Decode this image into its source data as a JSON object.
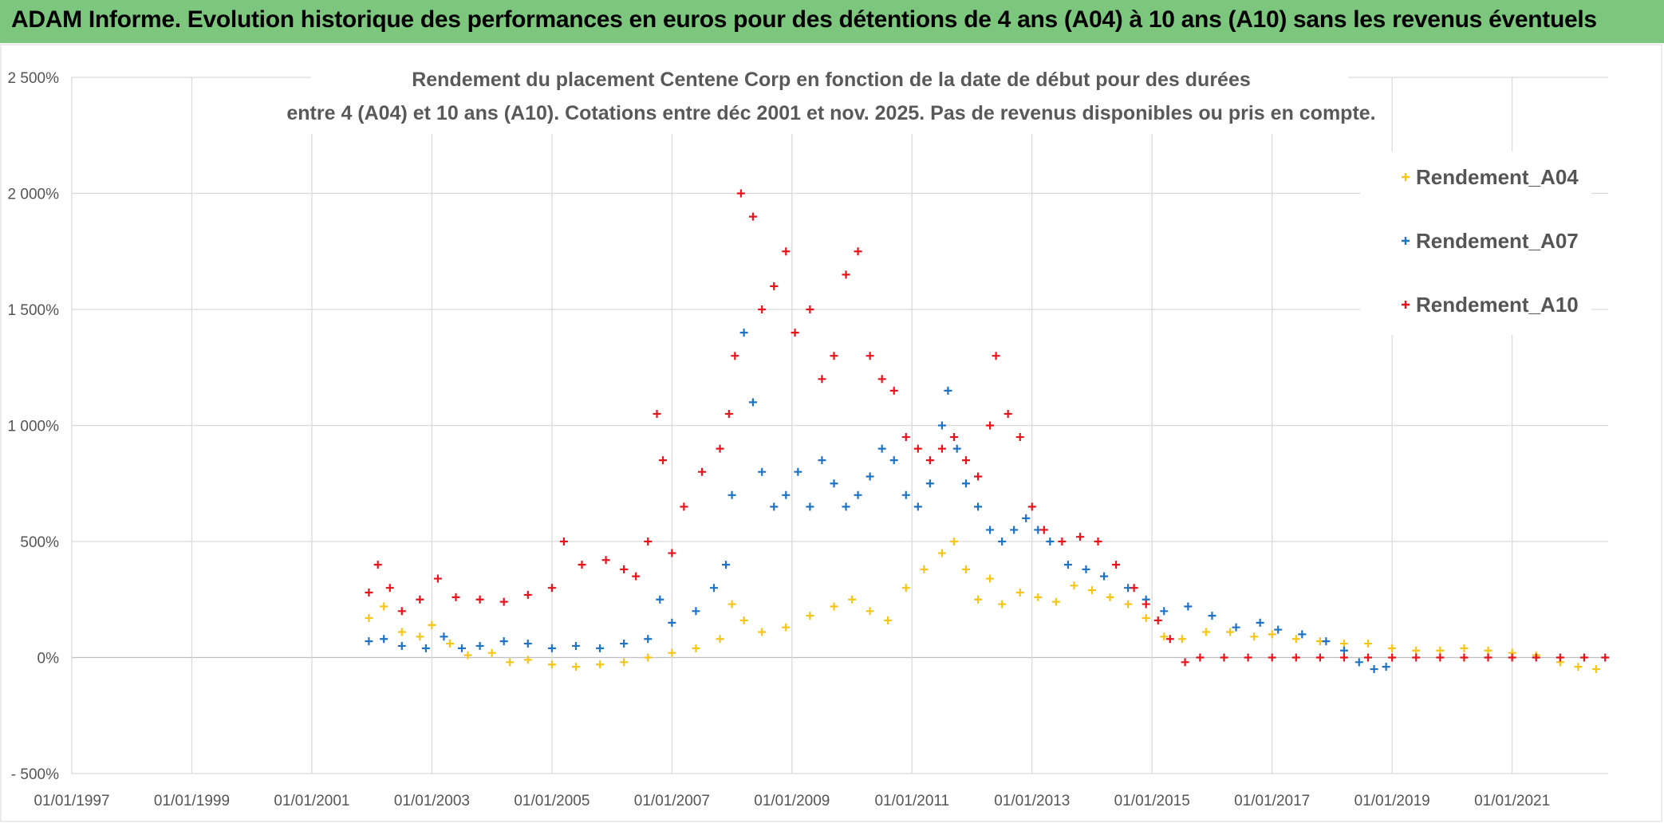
{
  "banner": {
    "title": "ADAM Informe. Evolution historique des performances en euros pour des détentions de 4 ans (A04) à 10 ans (A10) sans les revenus éventuels",
    "color": "#7cc67e"
  },
  "chart_data": {
    "type": "scatter",
    "title_line1": "Rendement du placement Centene Corp en fonction de la date de début pour des durées",
    "title_line2": "entre 4 (A04) et 10 ans (A10). Cotations entre déc 2001 et nov. 2025. Pas de revenus disponibles ou pris en compte.",
    "xlabel": "",
    "ylabel": "",
    "x_range": [
      1997.0,
      2022.6
    ],
    "ylim": [
      -500,
      2500
    ],
    "x_ticks": [
      {
        "value": 1997,
        "label": "01/01/1997"
      },
      {
        "value": 1999,
        "label": "01/01/1999"
      },
      {
        "value": 2001,
        "label": "01/01/2001"
      },
      {
        "value": 2003,
        "label": "01/01/2003"
      },
      {
        "value": 2005,
        "label": "01/01/2005"
      },
      {
        "value": 2007,
        "label": "01/01/2007"
      },
      {
        "value": 2009,
        "label": "01/01/2009"
      },
      {
        "value": 2011,
        "label": "01/01/2011"
      },
      {
        "value": 2013,
        "label": "01/01/2013"
      },
      {
        "value": 2015,
        "label": "01/01/2015"
      },
      {
        "value": 2017,
        "label": "01/01/2017"
      },
      {
        "value": 2019,
        "label": "01/01/2019"
      },
      {
        "value": 2021,
        "label": "01/01/2021"
      }
    ],
    "y_ticks": [
      {
        "value": -500,
        "label": "- 500%"
      },
      {
        "value": 0,
        "label": "0%"
      },
      {
        "value": 500,
        "label": "500%"
      },
      {
        "value": 1000,
        "label": "1 000%"
      },
      {
        "value": 1500,
        "label": "1 500%"
      },
      {
        "value": 2000,
        "label": "2 000%"
      },
      {
        "value": 2500,
        "label": "2 500%"
      }
    ],
    "grid": true,
    "legend_position": "top-right",
    "series": [
      {
        "name": "Rendement_A04",
        "color": "#f5c518",
        "points": [
          [
            2001.95,
            170
          ],
          [
            2002.2,
            220
          ],
          [
            2002.5,
            110
          ],
          [
            2002.8,
            90
          ],
          [
            2003.0,
            140
          ],
          [
            2003.3,
            60
          ],
          [
            2003.6,
            10
          ],
          [
            2004.0,
            20
          ],
          [
            2004.3,
            -20
          ],
          [
            2004.6,
            -10
          ],
          [
            2005.0,
            -30
          ],
          [
            2005.4,
            -40
          ],
          [
            2005.8,
            -30
          ],
          [
            2006.2,
            -20
          ],
          [
            2006.6,
            0
          ],
          [
            2007.0,
            20
          ],
          [
            2007.4,
            40
          ],
          [
            2007.8,
            80
          ],
          [
            2008.0,
            230
          ],
          [
            2008.2,
            160
          ],
          [
            2008.5,
            110
          ],
          [
            2008.9,
            130
          ],
          [
            2009.3,
            180
          ],
          [
            2009.7,
            220
          ],
          [
            2010.0,
            250
          ],
          [
            2010.3,
            200
          ],
          [
            2010.6,
            160
          ],
          [
            2010.9,
            300
          ],
          [
            2011.2,
            380
          ],
          [
            2011.5,
            450
          ],
          [
            2011.7,
            500
          ],
          [
            2011.9,
            380
          ],
          [
            2012.1,
            250
          ],
          [
            2012.3,
            340
          ],
          [
            2012.5,
            230
          ],
          [
            2012.8,
            280
          ],
          [
            2013.1,
            260
          ],
          [
            2013.4,
            240
          ],
          [
            2013.7,
            310
          ],
          [
            2014.0,
            290
          ],
          [
            2014.3,
            260
          ],
          [
            2014.6,
            230
          ],
          [
            2014.9,
            170
          ],
          [
            2015.2,
            90
          ],
          [
            2015.5,
            80
          ],
          [
            2015.9,
            110
          ],
          [
            2016.3,
            110
          ],
          [
            2016.7,
            90
          ],
          [
            2017.0,
            100
          ],
          [
            2017.4,
            80
          ],
          [
            2017.8,
            70
          ],
          [
            2018.2,
            60
          ],
          [
            2018.6,
            60
          ],
          [
            2019.0,
            40
          ],
          [
            2019.4,
            30
          ],
          [
            2019.8,
            30
          ],
          [
            2020.2,
            40
          ],
          [
            2020.6,
            30
          ],
          [
            2021.0,
            20
          ],
          [
            2021.4,
            10
          ],
          [
            2021.8,
            -20
          ],
          [
            2022.1,
            -40
          ],
          [
            2022.4,
            -50
          ]
        ]
      },
      {
        "name": "Rendement_A07",
        "color": "#1f73c5",
        "points": [
          [
            2001.95,
            70
          ],
          [
            2002.2,
            80
          ],
          [
            2002.5,
            50
          ],
          [
            2002.9,
            40
          ],
          [
            2003.2,
            90
          ],
          [
            2003.5,
            40
          ],
          [
            2003.8,
            50
          ],
          [
            2004.2,
            70
          ],
          [
            2004.6,
            60
          ],
          [
            2005.0,
            40
          ],
          [
            2005.4,
            50
          ],
          [
            2005.8,
            40
          ],
          [
            2006.2,
            60
          ],
          [
            2006.6,
            80
          ],
          [
            2006.8,
            250
          ],
          [
            2007.0,
            150
          ],
          [
            2007.4,
            200
          ],
          [
            2007.7,
            300
          ],
          [
            2007.9,
            400
          ],
          [
            2008.0,
            700
          ],
          [
            2008.2,
            1400
          ],
          [
            2008.35,
            1100
          ],
          [
            2008.5,
            800
          ],
          [
            2008.7,
            650
          ],
          [
            2008.9,
            700
          ],
          [
            2009.1,
            800
          ],
          [
            2009.3,
            650
          ],
          [
            2009.5,
            850
          ],
          [
            2009.7,
            750
          ],
          [
            2009.9,
            650
          ],
          [
            2010.1,
            700
          ],
          [
            2010.3,
            780
          ],
          [
            2010.5,
            900
          ],
          [
            2010.7,
            850
          ],
          [
            2010.9,
            700
          ],
          [
            2011.1,
            650
          ],
          [
            2011.3,
            750
          ],
          [
            2011.5,
            1000
          ],
          [
            2011.6,
            1150
          ],
          [
            2011.75,
            900
          ],
          [
            2011.9,
            750
          ],
          [
            2012.1,
            650
          ],
          [
            2012.3,
            550
          ],
          [
            2012.5,
            500
          ],
          [
            2012.7,
            550
          ],
          [
            2012.9,
            600
          ],
          [
            2013.1,
            550
          ],
          [
            2013.3,
            500
          ],
          [
            2013.6,
            400
          ],
          [
            2013.9,
            380
          ],
          [
            2014.2,
            350
          ],
          [
            2014.6,
            300
          ],
          [
            2014.9,
            250
          ],
          [
            2015.2,
            200
          ],
          [
            2015.6,
            220
          ],
          [
            2016.0,
            180
          ],
          [
            2016.4,
            130
          ],
          [
            2016.8,
            150
          ],
          [
            2017.1,
            120
          ],
          [
            2017.5,
            100
          ],
          [
            2017.9,
            70
          ],
          [
            2018.2,
            30
          ],
          [
            2018.45,
            -20
          ],
          [
            2018.7,
            -50
          ],
          [
            2018.9,
            -40
          ]
        ]
      },
      {
        "name": "Rendement_A10",
        "color": "#e8131b",
        "points": [
          [
            2001.95,
            280
          ],
          [
            2002.1,
            400
          ],
          [
            2002.3,
            300
          ],
          [
            2002.5,
            200
          ],
          [
            2002.8,
            250
          ],
          [
            2003.1,
            340
          ],
          [
            2003.4,
            260
          ],
          [
            2003.8,
            250
          ],
          [
            2004.2,
            240
          ],
          [
            2004.6,
            270
          ],
          [
            2005.0,
            300
          ],
          [
            2005.2,
            500
          ],
          [
            2005.5,
            400
          ],
          [
            2005.9,
            420
          ],
          [
            2006.2,
            380
          ],
          [
            2006.4,
            350
          ],
          [
            2006.6,
            500
          ],
          [
            2006.75,
            1050
          ],
          [
            2006.85,
            850
          ],
          [
            2007.0,
            450
          ],
          [
            2007.2,
            650
          ],
          [
            2007.5,
            800
          ],
          [
            2007.8,
            900
          ],
          [
            2007.95,
            1050
          ],
          [
            2008.05,
            1300
          ],
          [
            2008.15,
            2000
          ],
          [
            2008.35,
            1900
          ],
          [
            2008.5,
            1500
          ],
          [
            2008.7,
            1600
          ],
          [
            2008.9,
            1750
          ],
          [
            2009.05,
            1400
          ],
          [
            2009.3,
            1500
          ],
          [
            2009.5,
            1200
          ],
          [
            2009.7,
            1300
          ],
          [
            2009.9,
            1650
          ],
          [
            2010.1,
            1750
          ],
          [
            2010.3,
            1300
          ],
          [
            2010.5,
            1200
          ],
          [
            2010.7,
            1150
          ],
          [
            2010.9,
            950
          ],
          [
            2011.1,
            900
          ],
          [
            2011.3,
            850
          ],
          [
            2011.5,
            900
          ],
          [
            2011.7,
            950
          ],
          [
            2011.9,
            850
          ],
          [
            2012.1,
            780
          ],
          [
            2012.3,
            1000
          ],
          [
            2012.4,
            1300
          ],
          [
            2012.6,
            1050
          ],
          [
            2012.8,
            950
          ],
          [
            2013.0,
            650
          ],
          [
            2013.2,
            550
          ],
          [
            2013.5,
            500
          ],
          [
            2013.8,
            520
          ],
          [
            2014.1,
            500
          ],
          [
            2014.4,
            400
          ],
          [
            2014.7,
            300
          ],
          [
            2014.9,
            230
          ],
          [
            2015.1,
            160
          ],
          [
            2015.3,
            80
          ],
          [
            2015.55,
            -20
          ],
          [
            2015.8,
            0
          ],
          [
            2016.2,
            0
          ],
          [
            2016.6,
            0
          ],
          [
            2017.0,
            0
          ],
          [
            2017.4,
            0
          ],
          [
            2017.8,
            0
          ],
          [
            2018.2,
            0
          ],
          [
            2018.6,
            0
          ],
          [
            2019.0,
            0
          ],
          [
            2019.4,
            0
          ],
          [
            2019.8,
            0
          ],
          [
            2020.2,
            0
          ],
          [
            2020.6,
            0
          ],
          [
            2021.0,
            0
          ],
          [
            2021.4,
            0
          ],
          [
            2021.8,
            0
          ],
          [
            2022.2,
            0
          ],
          [
            2022.55,
            0
          ]
        ]
      }
    ]
  }
}
